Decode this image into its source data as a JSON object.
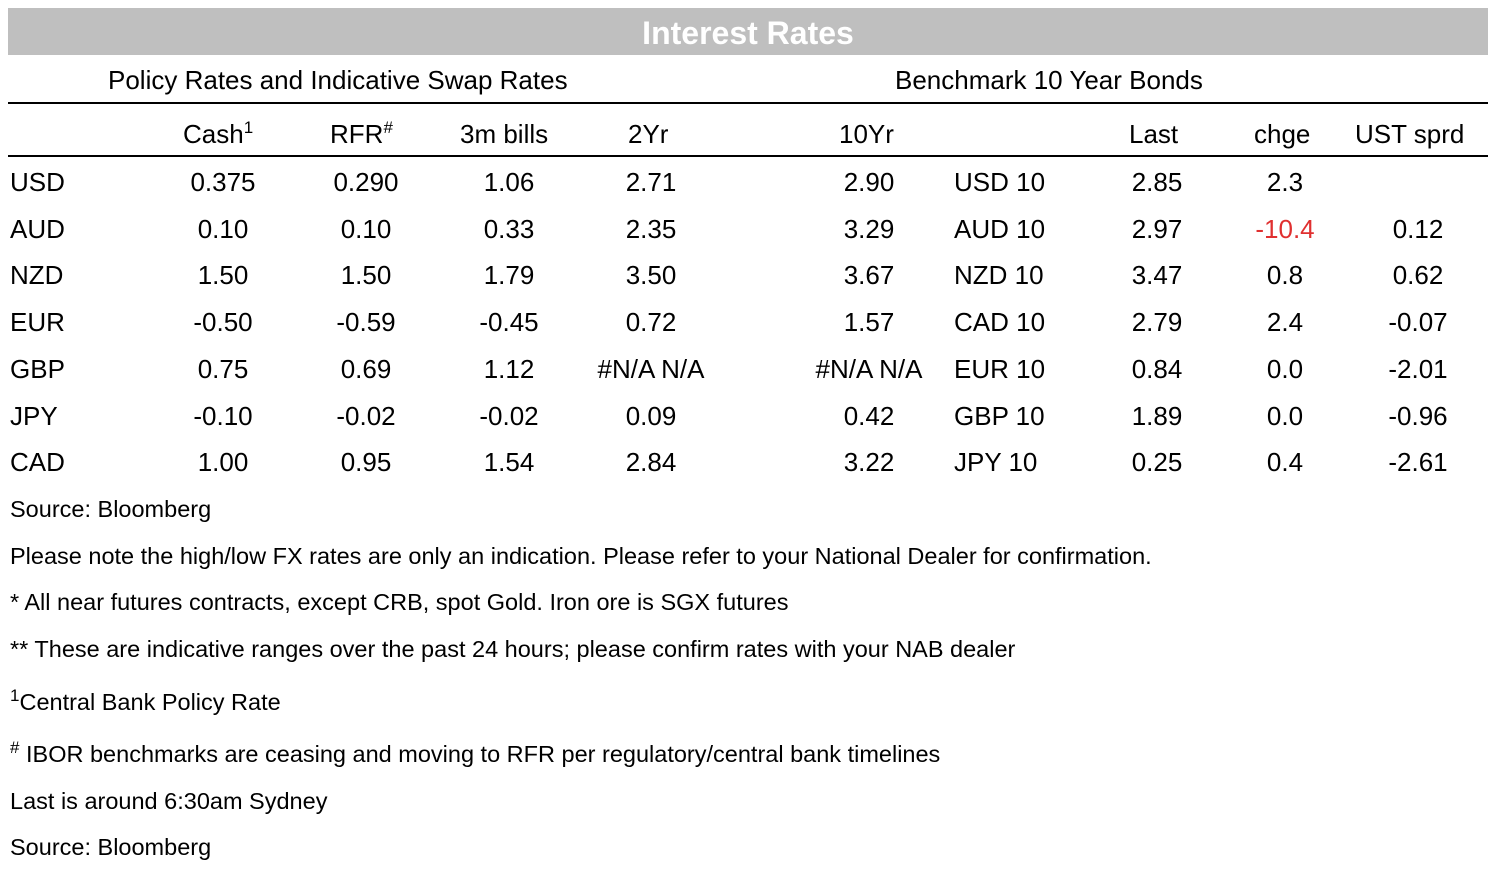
{
  "title": "Interest Rates",
  "left_section": "Policy Rates and Indicative Swap Rates",
  "right_section": "Benchmark 10 Year Bonds",
  "headers": {
    "cash": "Cash",
    "cash_sup": "1",
    "rfr": "RFR",
    "rfr_sup": "#",
    "bills": "3m bills",
    "y2": "2Yr",
    "y10": "10Yr",
    "last": "Last",
    "chge": "chge",
    "ust": "UST sprd"
  },
  "rows": [
    {
      "ccy": "USD",
      "cash": "0.375",
      "rfr": "0.290",
      "bills": "1.06",
      "y2": "2.71",
      "y10": "2.90",
      "bond": "USD 10",
      "last": "2.85",
      "chge": "2.3",
      "ust": ""
    },
    {
      "ccy": "AUD",
      "cash": "0.10",
      "rfr": "0.10",
      "bills": "0.33",
      "y2": "2.35",
      "y10": "3.29",
      "bond": "AUD 10",
      "last": "2.97",
      "chge": "-10.4",
      "ust": "0.12"
    },
    {
      "ccy": "NZD",
      "cash": "1.50",
      "rfr": "1.50",
      "bills": "1.79",
      "y2": "3.50",
      "y10": "3.67",
      "bond": "NZD 10",
      "last": "3.47",
      "chge": "0.8",
      "ust": "0.62"
    },
    {
      "ccy": "EUR",
      "cash": "-0.50",
      "rfr": "-0.59",
      "bills": "-0.45",
      "y2": "0.72",
      "y10": "1.57",
      "bond": "CAD 10",
      "last": "2.79",
      "chge": "2.4",
      "ust": "-0.07"
    },
    {
      "ccy": "GBP",
      "cash": "0.75",
      "rfr": "0.69",
      "bills": "1.12",
      "y2": "#N/A N/A",
      "y10": "#N/A N/A",
      "bond": "EUR 10",
      "last": "0.84",
      "chge": "0.0",
      "ust": "-2.01"
    },
    {
      "ccy": "JPY",
      "cash": "-0.10",
      "rfr": "-0.02",
      "bills": "-0.02",
      "y2": "0.09",
      "y10": "0.42",
      "bond": "GBP 10",
      "last": "1.89",
      "chge": "0.0",
      "ust": "-0.96"
    },
    {
      "ccy": "CAD",
      "cash": "1.00",
      "rfr": "0.95",
      "bills": "1.54",
      "y2": "2.84",
      "y10": "3.22",
      "bond": "JPY 10",
      "last": "0.25",
      "chge": "0.4",
      "ust": "-2.61"
    }
  ],
  "colors": {
    "banner_bg": "#bfbfbf",
    "negative_change": "#e03030"
  },
  "notes": {
    "source1": "Source: Bloomberg",
    "fx": "Please note the high/low FX rates are only an indication. Please refer to your National Dealer for confirmation.",
    "futures": "* All near futures contracts, except CRB, spot Gold.  Iron ore is SGX futures",
    "ranges": "** These are indicative ranges over the past 24 hours; please confirm rates with your NAB dealer",
    "policy_sup": "1",
    "policy": "Central Bank Policy Rate",
    "ibor_sup": "#",
    "ibor": " IBOR benchmarks are ceasing and moving to RFR per regulatory/central bank timelines",
    "last_time": "Last is around 6:30am Sydney",
    "source2": "Source: Bloomberg"
  }
}
